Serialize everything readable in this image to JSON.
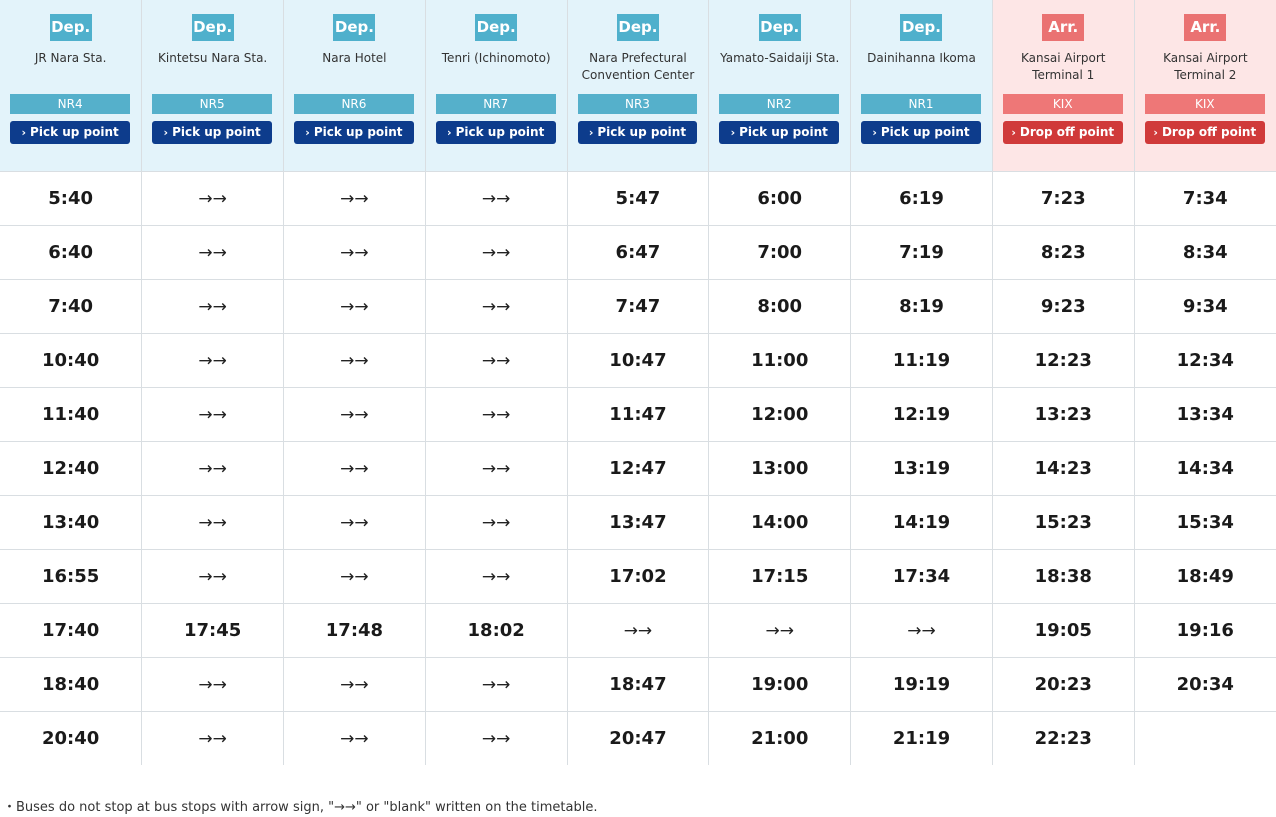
{
  "stations": [
    {
      "type_label": "Dep.",
      "name": "JR Nara Sta.",
      "code": "NR4",
      "button": "Pick up point",
      "kind": "dep"
    },
    {
      "type_label": "Dep.",
      "name": "Kintetsu Nara Sta.",
      "code": "NR5",
      "button": "Pick up point",
      "kind": "dep"
    },
    {
      "type_label": "Dep.",
      "name": "Nara Hotel",
      "code": "NR6",
      "button": "Pick up point",
      "kind": "dep"
    },
    {
      "type_label": "Dep.",
      "name": "Tenri (Ichinomoto)",
      "code": "NR7",
      "button": "Pick up point",
      "kind": "dep"
    },
    {
      "type_label": "Dep.",
      "name": "Nara Prefectural Convention Center",
      "code": "NR3",
      "button": "Pick up point",
      "kind": "dep"
    },
    {
      "type_label": "Dep.",
      "name": "Yamato-Saidaiji Sta.",
      "code": "NR2",
      "button": "Pick up point",
      "kind": "dep"
    },
    {
      "type_label": "Dep.",
      "name": "Dainihanna Ikoma",
      "code": "NR1",
      "button": "Pick up point",
      "kind": "dep"
    },
    {
      "type_label": "Arr.",
      "name": "Kansai Airport Terminal 1",
      "code": "KIX",
      "button": "Drop off point",
      "kind": "arr"
    },
    {
      "type_label": "Arr.",
      "name": "Kansai Airport Terminal 2",
      "code": "KIX",
      "button": "Drop off point",
      "kind": "arr"
    }
  ],
  "rows": [
    [
      "5:40",
      "→→",
      "→→",
      "→→",
      "5:47",
      "6:00",
      "6:19",
      "7:23",
      "7:34"
    ],
    [
      "6:40",
      "→→",
      "→→",
      "→→",
      "6:47",
      "7:00",
      "7:19",
      "8:23",
      "8:34"
    ],
    [
      "7:40",
      "→→",
      "→→",
      "→→",
      "7:47",
      "8:00",
      "8:19",
      "9:23",
      "9:34"
    ],
    [
      "10:40",
      "→→",
      "→→",
      "→→",
      "10:47",
      "11:00",
      "11:19",
      "12:23",
      "12:34"
    ],
    [
      "11:40",
      "→→",
      "→→",
      "→→",
      "11:47",
      "12:00",
      "12:19",
      "13:23",
      "13:34"
    ],
    [
      "12:40",
      "→→",
      "→→",
      "→→",
      "12:47",
      "13:00",
      "13:19",
      "14:23",
      "14:34"
    ],
    [
      "13:40",
      "→→",
      "→→",
      "→→",
      "13:47",
      "14:00",
      "14:19",
      "15:23",
      "15:34"
    ],
    [
      "16:55",
      "→→",
      "→→",
      "→→",
      "17:02",
      "17:15",
      "17:34",
      "18:38",
      "18:49"
    ],
    [
      "17:40",
      "17:45",
      "17:48",
      "18:02",
      "→→",
      "→→",
      "→→",
      "19:05",
      "19:16"
    ],
    [
      "18:40",
      "→→",
      "→→",
      "→→",
      "18:47",
      "19:00",
      "19:19",
      "20:23",
      "20:34"
    ],
    [
      "20:40",
      "→→",
      "→→",
      "→→",
      "20:47",
      "21:00",
      "21:19",
      "22:23",
      ""
    ]
  ],
  "note": "・Buses do not stop at bus stops with arrow sign, \"→→\" or \"blank\" written on the timetable.",
  "colors": {
    "dep_bg": "#e3f3fa",
    "dep_badge": "#4fb0cc",
    "dep_button": "#0d3c8c",
    "arr_bg": "#fde6e6",
    "arr_badge": "#ea7272",
    "arr_button": "#d03a3a"
  },
  "icons": {
    "button_icon": "chevron-right-icon"
  }
}
